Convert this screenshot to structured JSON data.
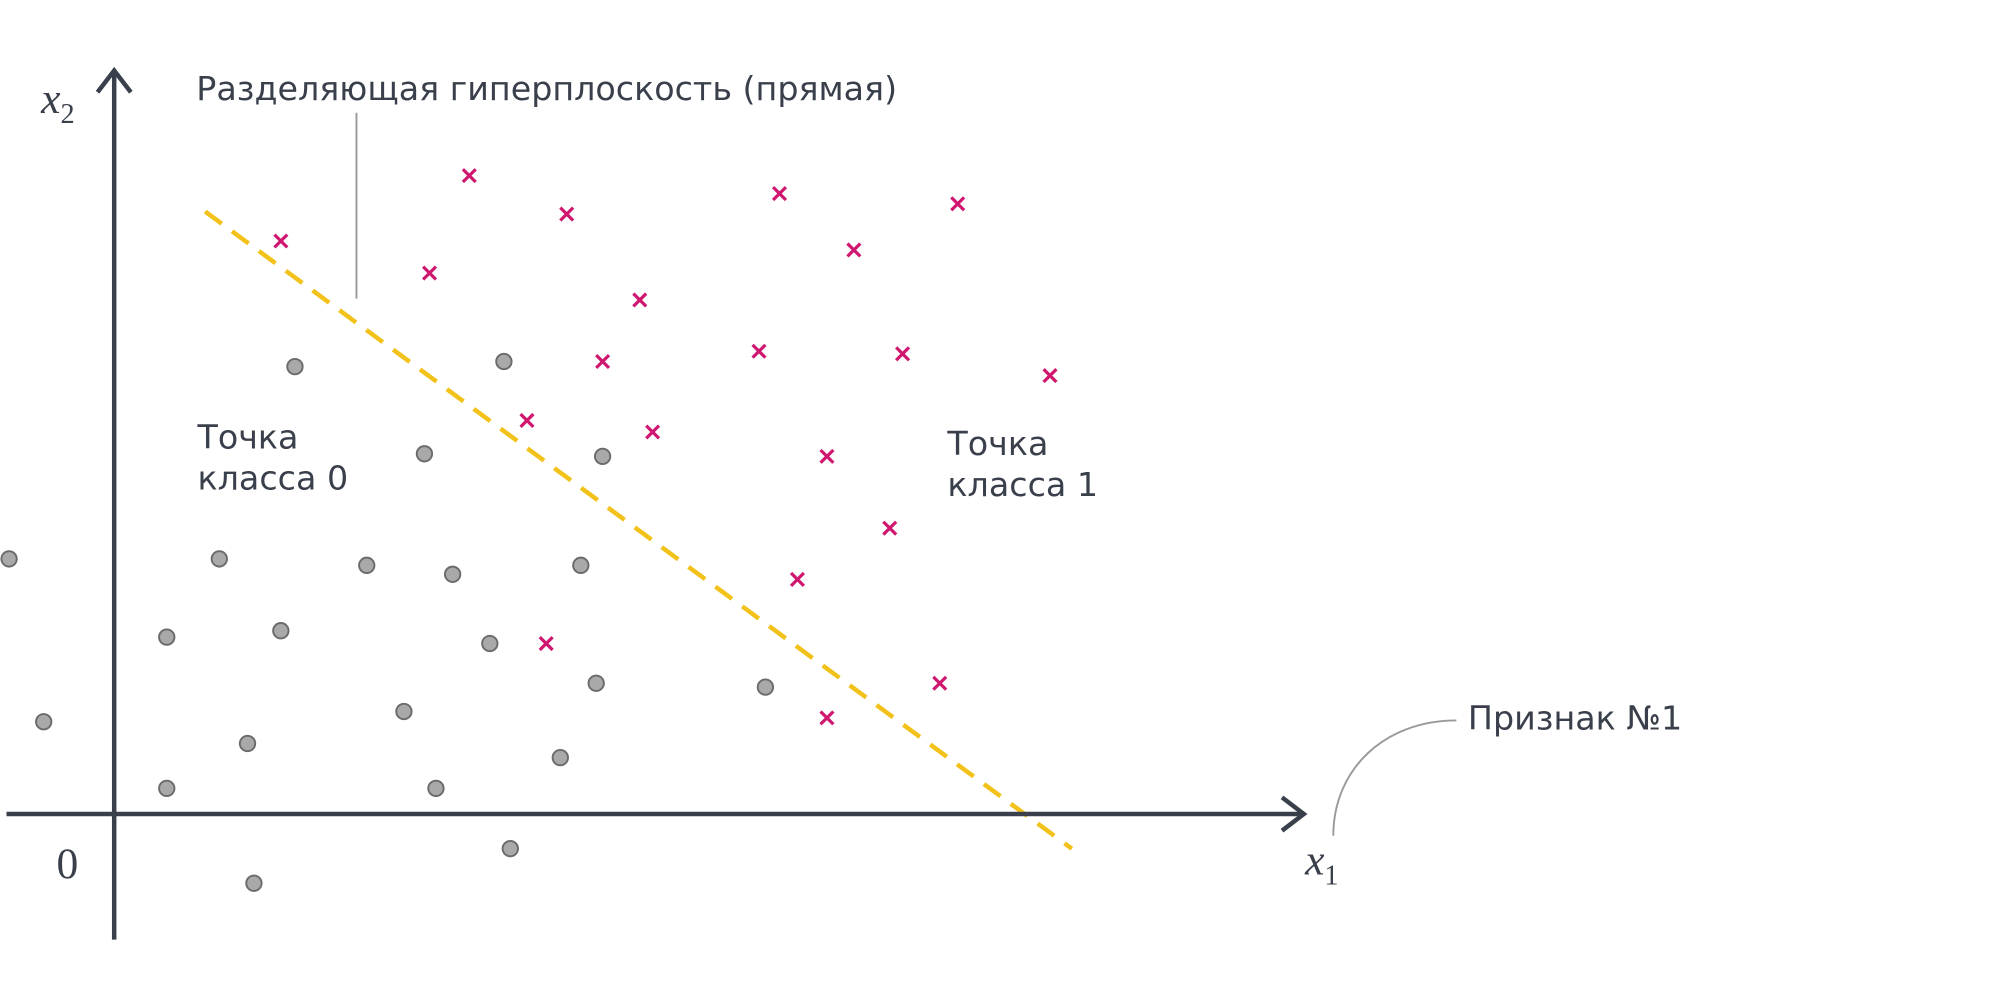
{
  "labels": {
    "hyperplane": "Разделяющая гиперплоскость (прямая)",
    "class0": [
      "Точка",
      "класса 0"
    ],
    "class1": [
      "Точка",
      "класса 1"
    ],
    "feature": "Признак №1",
    "origin": "0"
  },
  "axes": {
    "x": {
      "symbol": "x",
      "subscript": "1"
    },
    "y": {
      "symbol": "x",
      "subscript": "2"
    }
  }
}
